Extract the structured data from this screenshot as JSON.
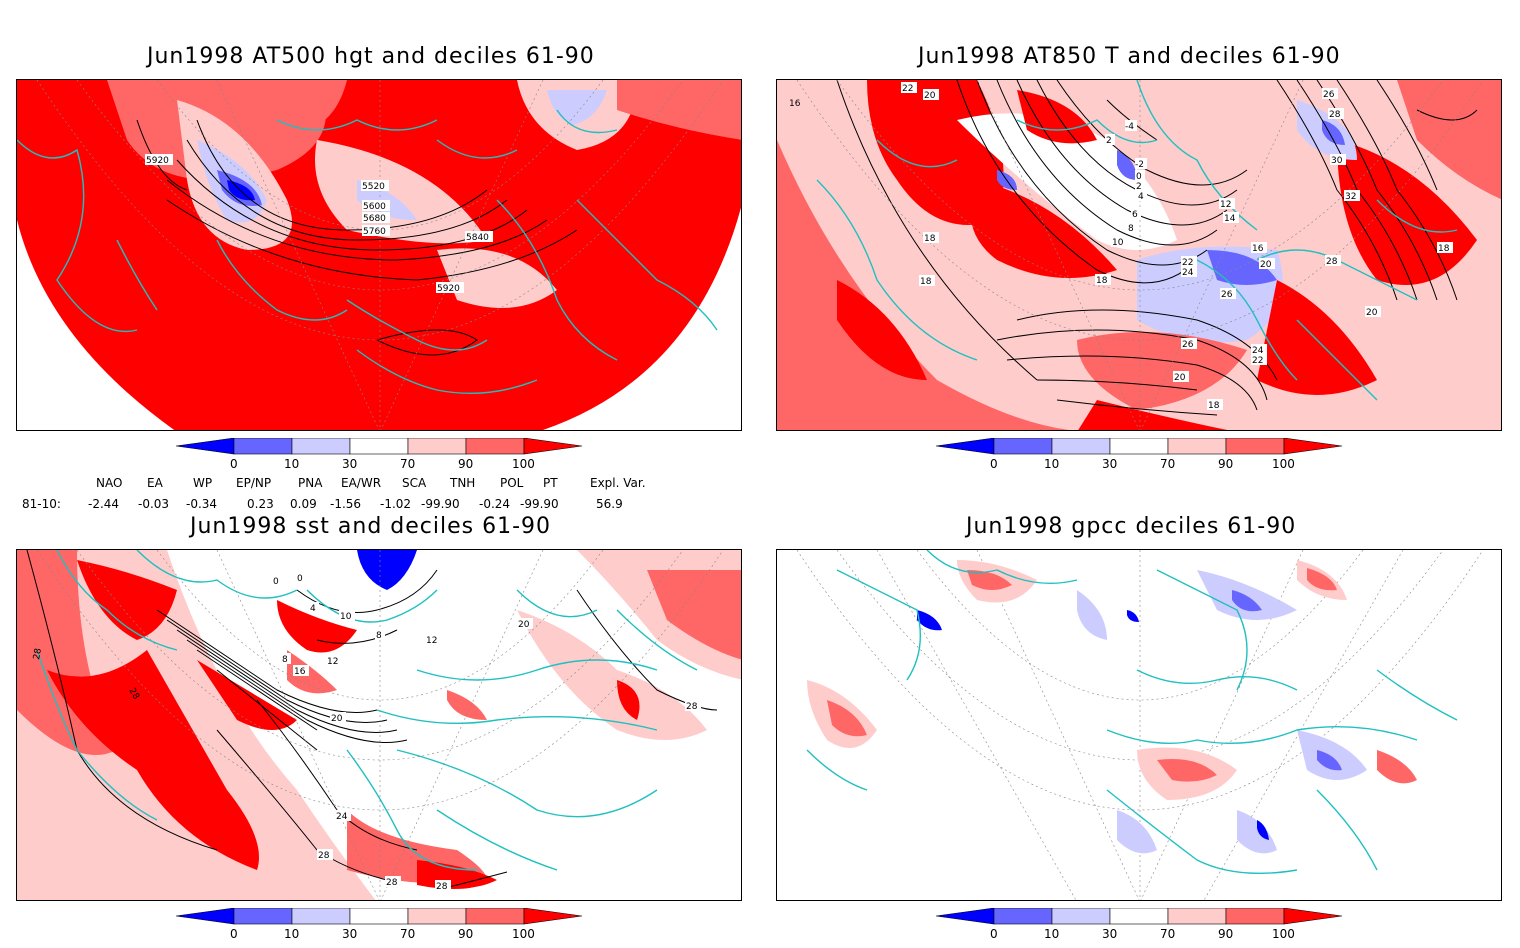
{
  "colors": {
    "deep_blue": "#0000ff",
    "mid_blue": "#6666ff",
    "light_blue": "#ccccff",
    "white": "#ffffff",
    "light_red": "#ffcccc",
    "mid_red": "#ff6666",
    "deep_red": "#ff0000",
    "coastline": "#20c0c0"
  },
  "panels": {
    "p1": {
      "title": "Jun1998 AT500 hgt and deciles 61-90",
      "contour_labels": [
        "5920",
        "5520",
        "5600",
        "5680",
        "5760",
        "5840",
        "5920"
      ]
    },
    "p2": {
      "title": "Jun1998 AT850 T and deciles 61-90",
      "contour_labels": [
        "16",
        "22",
        "20",
        "18",
        "2",
        "0",
        "-2",
        "-4",
        "2",
        "4",
        "6",
        "8",
        "10",
        "12",
        "14",
        "16",
        "18",
        "20",
        "22",
        "24",
        "26",
        "28",
        "30",
        "32",
        "26",
        "28",
        "18",
        "18",
        "18",
        "20",
        "26",
        "24",
        "22",
        "20",
        "18"
      ]
    },
    "p3": {
      "title": "Jun1998 sst and deciles 61-90",
      "contour_labels": [
        "28",
        "28",
        "0",
        "0",
        "4",
        "10",
        "8",
        "12",
        "16",
        "8",
        "12",
        "20",
        "20",
        "24",
        "28",
        "28",
        "28",
        "28"
      ]
    },
    "p4": {
      "title": "Jun1998 gpcc deciles 61-90"
    }
  },
  "colorbar": {
    "ticks": [
      "0",
      "10",
      "30",
      "70",
      "90",
      "100"
    ]
  },
  "indices": {
    "headers": [
      "NAO",
      "EA",
      "WP",
      "EP/NP",
      "PNA",
      "EA/WR",
      "SCA",
      "TNH",
      "POL",
      "PT",
      "Expl. Var."
    ],
    "row_label": "81-10:",
    "values": [
      "-2.44",
      "-0.03",
      "-0.34",
      "0.23",
      "0.09",
      "-1.56",
      "-1.02",
      "-99.90",
      "-0.24",
      "-99.90",
      "56.9"
    ]
  }
}
